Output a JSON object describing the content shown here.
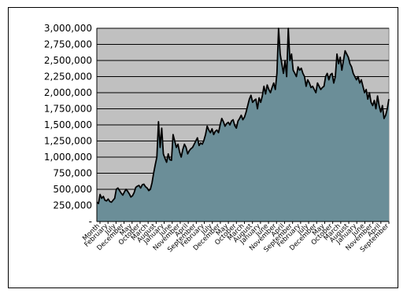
{
  "chart_data": {
    "type": "area",
    "title": "",
    "xlabel": "",
    "ylabel": "",
    "ylim": [
      0,
      3000000
    ],
    "y_ticks": [
      0,
      250000,
      500000,
      750000,
      1000000,
      1250000,
      1500000,
      1750000,
      2000000,
      2250000,
      2500000,
      2750000,
      3000000
    ],
    "y_tick_labels": [
      "-",
      "250,000",
      "500,000",
      "750,000",
      "1,000,000",
      "1,250,000",
      "1,500,000",
      "1,750,000",
      "2,000,000",
      "2,250,000",
      "2,500,000",
      "2,750,000",
      "3,000,000"
    ],
    "grid": true,
    "colors": {
      "plot_bg": "#c0c0c0",
      "fill": "#6b8e98",
      "line": "#000000"
    },
    "x_tick_labels": [
      "Month",
      "February",
      "July",
      "December",
      "May",
      "October",
      "March",
      "August",
      "January",
      "June",
      "November",
      "April",
      "September",
      "February",
      "July",
      "December",
      "May",
      "October",
      "March",
      "August",
      "January",
      "June",
      "November",
      "April",
      "September",
      "February",
      "July",
      "December",
      "May",
      "October",
      "March",
      "August",
      "January",
      "June",
      "November",
      "April",
      "September"
    ],
    "values": [
      300000,
      280000,
      420000,
      360000,
      390000,
      330000,
      320000,
      350000,
      310000,
      300000,
      330000,
      360000,
      500000,
      520000,
      480000,
      440000,
      410000,
      460000,
      500000,
      470000,
      430000,
      380000,
      400000,
      450000,
      530000,
      550000,
      560000,
      520000,
      570000,
      580000,
      540000,
      520000,
      480000,
      500000,
      600000,
      750000,
      880000,
      1000000,
      1550000,
      1150000,
      1450000,
      1050000,
      980000,
      920000,
      1050000,
      960000,
      950000,
      1350000,
      1250000,
      1150000,
      1200000,
      1080000,
      1000000,
      1120000,
      1200000,
      1150000,
      1050000,
      1100000,
      1130000,
      1150000,
      1200000,
      1250000,
      1300000,
      1180000,
      1220000,
      1200000,
      1260000,
      1350000,
      1480000,
      1420000,
      1380000,
      1440000,
      1350000,
      1400000,
      1420000,
      1380000,
      1500000,
      1600000,
      1550000,
      1480000,
      1520000,
      1540000,
      1500000,
      1560000,
      1580000,
      1490000,
      1450000,
      1560000,
      1600000,
      1650000,
      1580000,
      1620000,
      1700000,
      1800000,
      1900000,
      1960000,
      1850000,
      1880000,
      1900000,
      1750000,
      1920000,
      1850000,
      1950000,
      2100000,
      1980000,
      2120000,
      2050000,
      2000000,
      2080000,
      2150000,
      2050000,
      2300000,
      3000000,
      2600000,
      2450000,
      2300000,
      2500000,
      2250000,
      3000000,
      2500000,
      2600000,
      2350000,
      2300000,
      2250000,
      2400000,
      2350000,
      2380000,
      2300000,
      2250000,
      2100000,
      2200000,
      2150000,
      2080000,
      2100000,
      2050000,
      2000000,
      2150000,
      2100000,
      2050000,
      2080000,
      2100000,
      2250000,
      2300000,
      2200000,
      2280000,
      2300000,
      2150000,
      2250000,
      2600000,
      2450000,
      2550000,
      2350000,
      2500000,
      2650000,
      2600000,
      2550000,
      2450000,
      2400000,
      2300000,
      2250000,
      2200000,
      2250000,
      2150000,
      2200000,
      2100000,
      2000000,
      2050000,
      1900000,
      2000000,
      1850000,
      1800000,
      1880000,
      1750000,
      1950000,
      1800000,
      1700000,
      1800000,
      1600000,
      1650000,
      1750000,
      1900000
    ]
  }
}
